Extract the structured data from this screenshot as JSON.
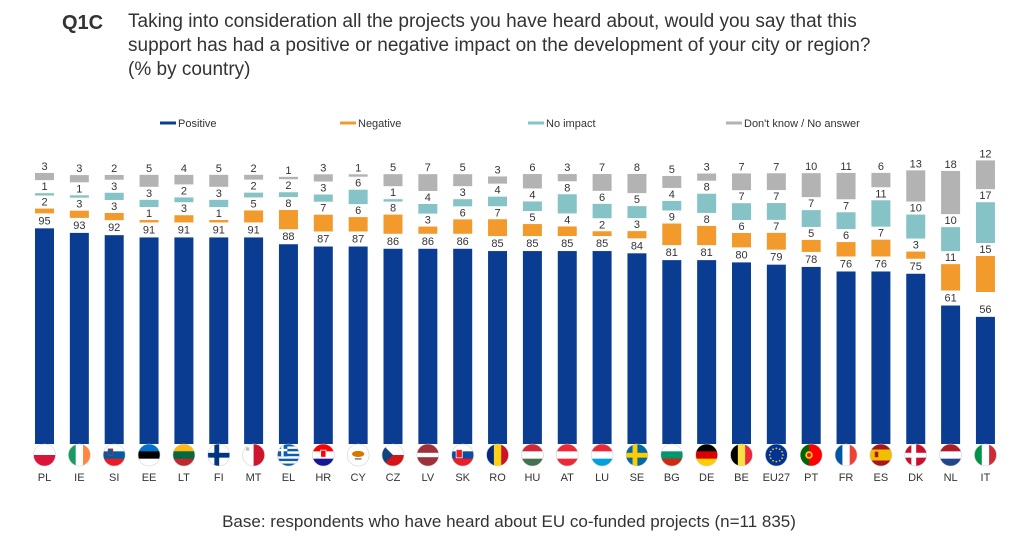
{
  "question": {
    "id": "Q1C",
    "line1": "Taking into consideration all the projects you have heard about, would you say that this",
    "line2": "support has had a positive or negative impact on the development of your city or region?",
    "line3": "(% by country)"
  },
  "base_note": "Base: respondents who have heard about EU co-funded projects (n=11 835)",
  "colors": {
    "positive": "#0a3d91",
    "negative": "#f39a2c",
    "no_impact": "#86c3c6",
    "dont_know": "#b3b3b3"
  },
  "chart_data": {
    "type": "bar",
    "stacked": true,
    "ylim": [
      0,
      100
    ],
    "grid": false,
    "legend_position": "top",
    "categories": [
      "PL",
      "IE",
      "SI",
      "EE",
      "LT",
      "FI",
      "MT",
      "EL",
      "HR",
      "CY",
      "CZ",
      "LV",
      "SK",
      "RO",
      "HU",
      "AT",
      "LU",
      "SE",
      "BG",
      "DE",
      "BE",
      "EU27",
      "PT",
      "FR",
      "ES",
      "DK",
      "NL",
      "IT"
    ],
    "flags": [
      "flag-pl",
      "flag-ie",
      "flag-si",
      "flag-ee",
      "flag-lt",
      "flag-fi",
      "flag-mt",
      "flag-el",
      "flag-hr",
      "flag-cy",
      "flag-cz",
      "flag-lv",
      "flag-sk",
      "flag-ro",
      "flag-hu",
      "flag-at",
      "flag-lu",
      "flag-se",
      "flag-bg",
      "flag-de",
      "flag-be",
      "flag-eu27",
      "flag-pt",
      "flag-fr",
      "flag-es",
      "flag-dk",
      "flag-nl",
      "flag-it"
    ],
    "series": [
      {
        "name": "Positive",
        "color": "#0a3d91",
        "values": [
          95,
          93,
          92,
          91,
          91,
          91,
          91,
          88,
          87,
          87,
          86,
          86,
          86,
          85,
          85,
          85,
          85,
          84,
          81,
          81,
          80,
          79,
          78,
          76,
          76,
          75,
          61,
          56
        ]
      },
      {
        "name": "Negative",
        "color": "#f39a2c",
        "values": [
          2,
          3,
          3,
          1,
          3,
          1,
          5,
          8,
          7,
          6,
          8,
          3,
          6,
          7,
          5,
          4,
          2,
          3,
          9,
          8,
          6,
          7,
          5,
          6,
          7,
          3,
          11,
          15
        ]
      },
      {
        "name": "No impact",
        "color": "#86c3c6",
        "values": [
          1,
          1,
          3,
          3,
          2,
          3,
          2,
          2,
          3,
          6,
          1,
          4,
          3,
          4,
          4,
          8,
          6,
          5,
          4,
          8,
          7,
          7,
          7,
          7,
          11,
          10,
          10,
          17
        ]
      },
      {
        "name": "Don't know / No answer",
        "color": "#b3b3b3",
        "values": [
          3,
          3,
          2,
          5,
          4,
          5,
          2,
          1,
          3,
          1,
          5,
          7,
          5,
          3,
          6,
          3,
          7,
          8,
          5,
          3,
          7,
          7,
          10,
          11,
          6,
          13,
          18,
          12
        ]
      }
    ]
  }
}
